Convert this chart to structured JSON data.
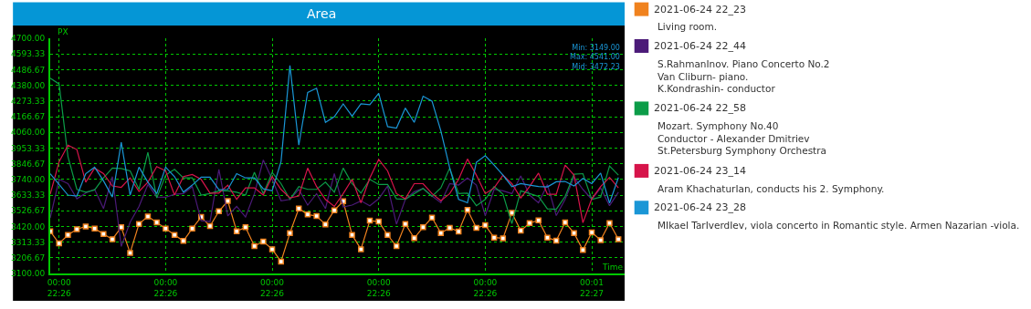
{
  "chart_data": {
    "type": "line",
    "title": "Area",
    "xlabel": "Time",
    "ylabel": "PX",
    "categories": [
      null,
      "00:00\n22:26",
      null,
      null,
      null,
      null,
      null,
      null,
      null,
      null,
      null,
      null,
      null,
      "00:00\n22:26",
      null,
      null,
      null,
      null,
      null,
      null,
      null,
      null,
      null,
      null,
      null,
      "00:00\n22:26",
      null,
      null,
      null,
      null,
      null,
      null,
      null,
      null,
      null,
      null,
      null,
      "00:00\n22:26",
      null,
      null,
      null,
      null,
      null,
      null,
      null,
      null,
      null,
      null,
      null,
      "00:00\n22:26",
      null,
      null,
      null,
      null,
      null,
      null,
      null,
      null,
      null,
      null,
      null,
      "00:01\n22:27",
      null,
      null,
      null
    ],
    "ylim": [
      3100,
      4700
    ],
    "yticks": [
      {
        "value": 3100,
        "label": "3100.00"
      },
      {
        "value": 3206.67,
        "label": "3206.67"
      },
      {
        "value": 3313.33,
        "label": "3313.33"
      },
      {
        "value": 3420,
        "label": "3420.00"
      },
      {
        "value": 3526.67,
        "label": "3526.67"
      },
      {
        "value": 3633.33,
        "label": "3633.33"
      },
      {
        "value": 3740,
        "label": "3740.00"
      },
      {
        "value": 3846.67,
        "label": "3846.67"
      },
      {
        "value": 3953.33,
        "label": "3953.33"
      },
      {
        "value": 4060,
        "label": "4060.00"
      },
      {
        "value": 4166.67,
        "label": "4166.67"
      },
      {
        "value": 4273.33,
        "label": "4273.33"
      },
      {
        "value": 4380,
        "label": "4380.00"
      },
      {
        "value": 4486.67,
        "label": "4486.67"
      },
      {
        "value": 4593.33,
        "label": "4593.33"
      },
      {
        "value": 4700,
        "label": "4700.00"
      }
    ],
    "grid": true,
    "legend": "right",
    "line_style": "solid",
    "series": [
      {
        "name": "2021-06-24 22_23",
        "color": "#f0821e",
        "marker": "square",
        "values": [
          3387,
          3304,
          3362,
          3401,
          3420,
          3406,
          3368,
          3333,
          3414,
          3240,
          3437,
          3488,
          3447,
          3406,
          3362,
          3321,
          3406,
          3484,
          3422,
          3523,
          3593,
          3387,
          3414,
          3286,
          3317,
          3265,
          3181,
          3375,
          3542,
          3501,
          3490,
          3434,
          3530,
          3591,
          3362,
          3265,
          3459,
          3453,
          3362,
          3286,
          3437,
          3340,
          3414,
          3480,
          3375,
          3410,
          3385,
          3532,
          3410,
          3428,
          3344,
          3339,
          3513,
          3391,
          3443,
          3461,
          3344,
          3323,
          3447,
          3375,
          3259,
          3379,
          3327,
          3443,
          3333
        ]
      },
      {
        "name": "2021-06-24 22_44",
        "color": "#4b1a78",
        "marker": "none",
        "values": [
          3478,
          3740,
          3711,
          3608,
          3647,
          3672,
          3542,
          3759,
          3284,
          3449,
          3556,
          3705,
          3620,
          3618,
          3639,
          3643,
          3691,
          3459,
          3453,
          3808,
          3492,
          3556,
          3484,
          3643,
          3872,
          3740,
          3594,
          3604,
          3672,
          3565,
          3643,
          3542,
          3779,
          3552,
          3565,
          3594,
          3560,
          3608,
          3695,
          3435,
          3604,
          3656,
          3678,
          3627,
          3581,
          3711,
          3701,
          3750,
          3701,
          3494,
          3672,
          3662,
          3643,
          3763,
          3633,
          3581,
          3705,
          3494,
          3604,
          3755,
          3672,
          3604,
          3682,
          3561,
          3653
        ]
      },
      {
        "name": "2021-06-24 22_58",
        "color": "#0c9c48",
        "marker": "none",
        "values": [
          4428,
          4389,
          3895,
          3672,
          3653,
          3668,
          3750,
          3817,
          3814,
          3798,
          3672,
          3924,
          3614,
          3769,
          3808,
          3750,
          3750,
          3633,
          3643,
          3662,
          3662,
          3653,
          3633,
          3788,
          3643,
          3788,
          3711,
          3604,
          3691,
          3672,
          3672,
          3721,
          3653,
          3817,
          3711,
          3647,
          3740,
          3705,
          3705,
          3608,
          3604,
          3643,
          3678,
          3624,
          3682,
          3817,
          3643,
          3647,
          3561,
          3604,
          3691,
          3639,
          3439,
          3662,
          3643,
          3624,
          3540,
          3536,
          3624,
          3775,
          3779,
          3604,
          3620,
          3831,
          3769
        ]
      },
      {
        "name": "2021-06-24 23_14",
        "color": "#d6144a",
        "marker": "none",
        "values": [
          3639,
          3860,
          3973,
          3943,
          3721,
          3817,
          3779,
          3695,
          3686,
          3750,
          3658,
          3721,
          3827,
          3798,
          3633,
          3759,
          3773,
          3740,
          3647,
          3647,
          3701,
          3604,
          3682,
          3682,
          3633,
          3759,
          3672,
          3614,
          3627,
          3817,
          3691,
          3604,
          3556,
          3643,
          3740,
          3581,
          3750,
          3876,
          3798,
          3643,
          3608,
          3711,
          3711,
          3643,
          3594,
          3643,
          3740,
          3879,
          3769,
          3643,
          3682,
          3769,
          3711,
          3614,
          3691,
          3783,
          3639,
          3639,
          3837,
          3769,
          3445,
          3608,
          3691,
          3753,
          3682
        ]
      },
      {
        "name": "2021-06-24 23_28",
        "color": "#1a96d6",
        "marker": "none",
        "values": [
          3779,
          3705,
          3633,
          3627,
          3779,
          3823,
          3730,
          3620,
          3992,
          3633,
          3823,
          3721,
          3643,
          3823,
          3759,
          3653,
          3701,
          3755,
          3755,
          3670,
          3672,
          3779,
          3750,
          3750,
          3676,
          3662,
          3862,
          4515,
          3973,
          4331,
          4360,
          4128,
          4166,
          4254,
          4170,
          4254,
          4248,
          4325,
          4099,
          4089,
          4225,
          4128,
          4306,
          4273,
          4070,
          3817,
          3604,
          3581,
          3856,
          3901,
          3837,
          3769,
          3691,
          3711,
          3701,
          3691,
          3689,
          3724,
          3726,
          3695,
          3746,
          3711,
          3783,
          3579,
          3753
        ]
      }
    ],
    "annotations": [
      "Living room.",
      "S.RahmanInov. Piano Concerto No.2\nVan Cliburn- piano.\nK.Kondrashin- conductor",
      "Mozart. Symphony No.40\nConductor - Alexander Dmitriev\nSt.Petersburg Symphony Orchestra",
      "Aram KhachaturIan, conducts his 2. Symphony.",
      "MIkael TarIverdIev, viola concerto in Romantic style. Armen Nazarian -viola.",
      "Min: 3149.00\nMax: 4541.00\nMid: 3472.23"
    ]
  }
}
